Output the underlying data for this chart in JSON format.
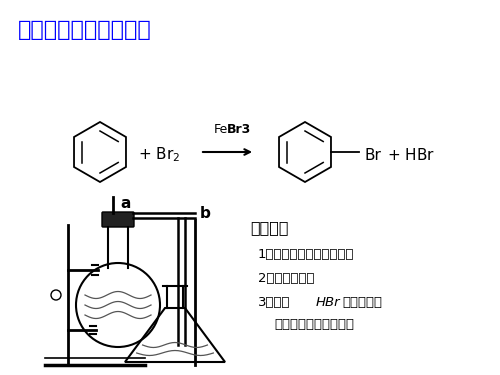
{
  "title": "实验室制取溴苯及提纯",
  "title_color": "#0000FF",
  "title_fontsize": 16,
  "background_color": "#FFFFFF",
  "notes_title": "注意事项",
  "note1": "1、用液溴，不能用溴水；",
  "note2": "2、不用加热；",
  "note3_prefix": "3、吸收",
  "note3_italic": "HBr",
  "note3_suffix": "的导管不能",
  "note3_line2": "    伸入水中，防止倒吸。",
  "label_a": "a",
  "label_b": "b",
  "catalyst_normal": "Fe",
  "catalyst_bold": "Br3"
}
